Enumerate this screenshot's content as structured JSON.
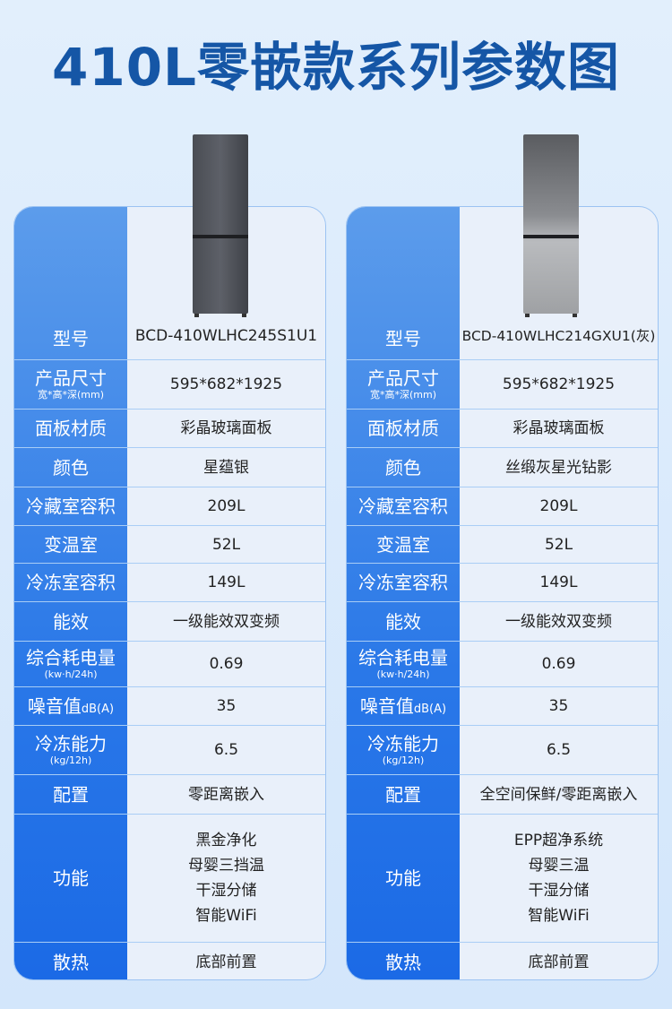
{
  "title": "410L零嵌款系列参数图",
  "colors": {
    "title": "#1556a6",
    "label_bg": "#2a78e8",
    "value_bg": "#e9f0fa"
  },
  "labels": [
    {
      "main": "型号"
    },
    {
      "main": "产品尺寸",
      "sub": "宽*高*深(mm)"
    },
    {
      "main": "面板材质"
    },
    {
      "main": "颜色"
    },
    {
      "main": "冷藏室容积"
    },
    {
      "main": "变温室"
    },
    {
      "main": "冷冻室容积"
    },
    {
      "main": "能效"
    },
    {
      "main": "综合耗电量",
      "sub": "(kw·h/24h)"
    },
    {
      "main": "噪音值",
      "unit": "dB(A)"
    },
    {
      "main": "冷冻能力",
      "sub": "(kg/12h)"
    },
    {
      "main": "配置"
    },
    {
      "main": "功能"
    },
    {
      "main": "散热"
    }
  ],
  "products": [
    {
      "color_image": "dark-gray-fridge",
      "values": [
        "BCD-410WLHC245S1U1",
        "595*682*1925",
        "彩晶玻璃面板",
        "星蕴银",
        "209L",
        "52L",
        "149L",
        "一级能效双变频",
        "0.69",
        "35",
        "6.5",
        "零距离嵌入",
        [
          "黑金净化",
          "母婴三挡温",
          "干湿分储",
          "智能WiFi"
        ],
        "底部前置"
      ]
    },
    {
      "color_image": "silver-gray-fridge",
      "values": [
        "BCD-410WLHC214GXU1(灰)",
        "595*682*1925",
        "彩晶玻璃面板",
        "丝缎灰星光钻影",
        "209L",
        "52L",
        "149L",
        "一级能效双变频",
        "0.69",
        "35",
        "6.5",
        "全空间保鲜/零距离嵌入",
        [
          "EPP超净系统",
          "母婴三温",
          "干湿分储",
          "智能WiFi"
        ],
        "底部前置"
      ]
    }
  ]
}
